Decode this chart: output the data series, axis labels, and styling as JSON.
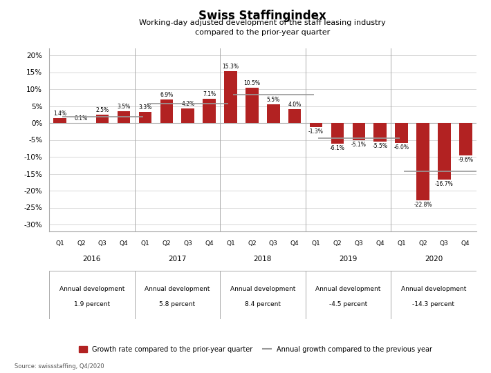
{
  "title": "Swiss Staffingindex",
  "subtitle": "Working-day adjusted development of the staff leasing industry\ncompared to the prior-year quarter",
  "bar_color": "#B22222",
  "annual_line_color": "#999999",
  "background_color": "#FFFFFF",
  "values": [
    1.4,
    0.1,
    2.5,
    3.5,
    3.3,
    6.9,
    4.2,
    7.1,
    15.3,
    10.5,
    5.5,
    4.0,
    -1.3,
    -6.1,
    -5.1,
    -5.5,
    -6.0,
    -22.8,
    -16.7,
    -9.6
  ],
  "annual_values": [
    1.9,
    5.8,
    8.4,
    -4.5,
    -14.3
  ],
  "years": [
    "2016",
    "2017",
    "2018",
    "2019",
    "2020"
  ],
  "annual_labels_line1": [
    "Annual development",
    "Annual development",
    "Annual development",
    "Annual development",
    "Annual development"
  ],
  "annual_labels_line2": [
    "1.9 percent",
    "5.8 percent",
    "8.4 percent",
    "-4.5 percent",
    "-14.3 percent"
  ],
  "quarters": [
    "Q1",
    "Q2",
    "Q3",
    "Q4",
    "Q1",
    "Q2",
    "Q3",
    "Q4",
    "Q1",
    "Q2",
    "Q3",
    "Q4",
    "Q1",
    "Q2",
    "Q3",
    "Q4",
    "Q1",
    "Q2",
    "Q3",
    "Q4"
  ],
  "ylim": [
    -0.32,
    0.22
  ],
  "yticks": [
    -0.3,
    -0.25,
    -0.2,
    -0.15,
    -0.1,
    -0.05,
    0.0,
    0.05,
    0.1,
    0.15,
    0.2
  ],
  "ytick_labels": [
    "-30%",
    "-25%",
    "-20%",
    "-15%",
    "-10%",
    "-5%",
    "0%",
    "5%",
    "10%",
    "15%",
    "20%"
  ],
  "legend_bar_label": "Growth rate compared to the prior-year quarter",
  "legend_line_label": "Annual growth compared to the previous year",
  "source": "Source: swissstaffing, Q4/2020",
  "value_labels": [
    "1.4%",
    "0.1%",
    "2.5%",
    "3.5%",
    "3.3%",
    "6.9%",
    "4.2%",
    "7.1%",
    "15.3%",
    "10.5%",
    "5.5%",
    "4.0%",
    "-1.3%",
    "-6.1%",
    "-5.1%",
    "-5.5%",
    "-6.0%",
    "-22.8%",
    "-16.7%",
    "-9.6%"
  ]
}
